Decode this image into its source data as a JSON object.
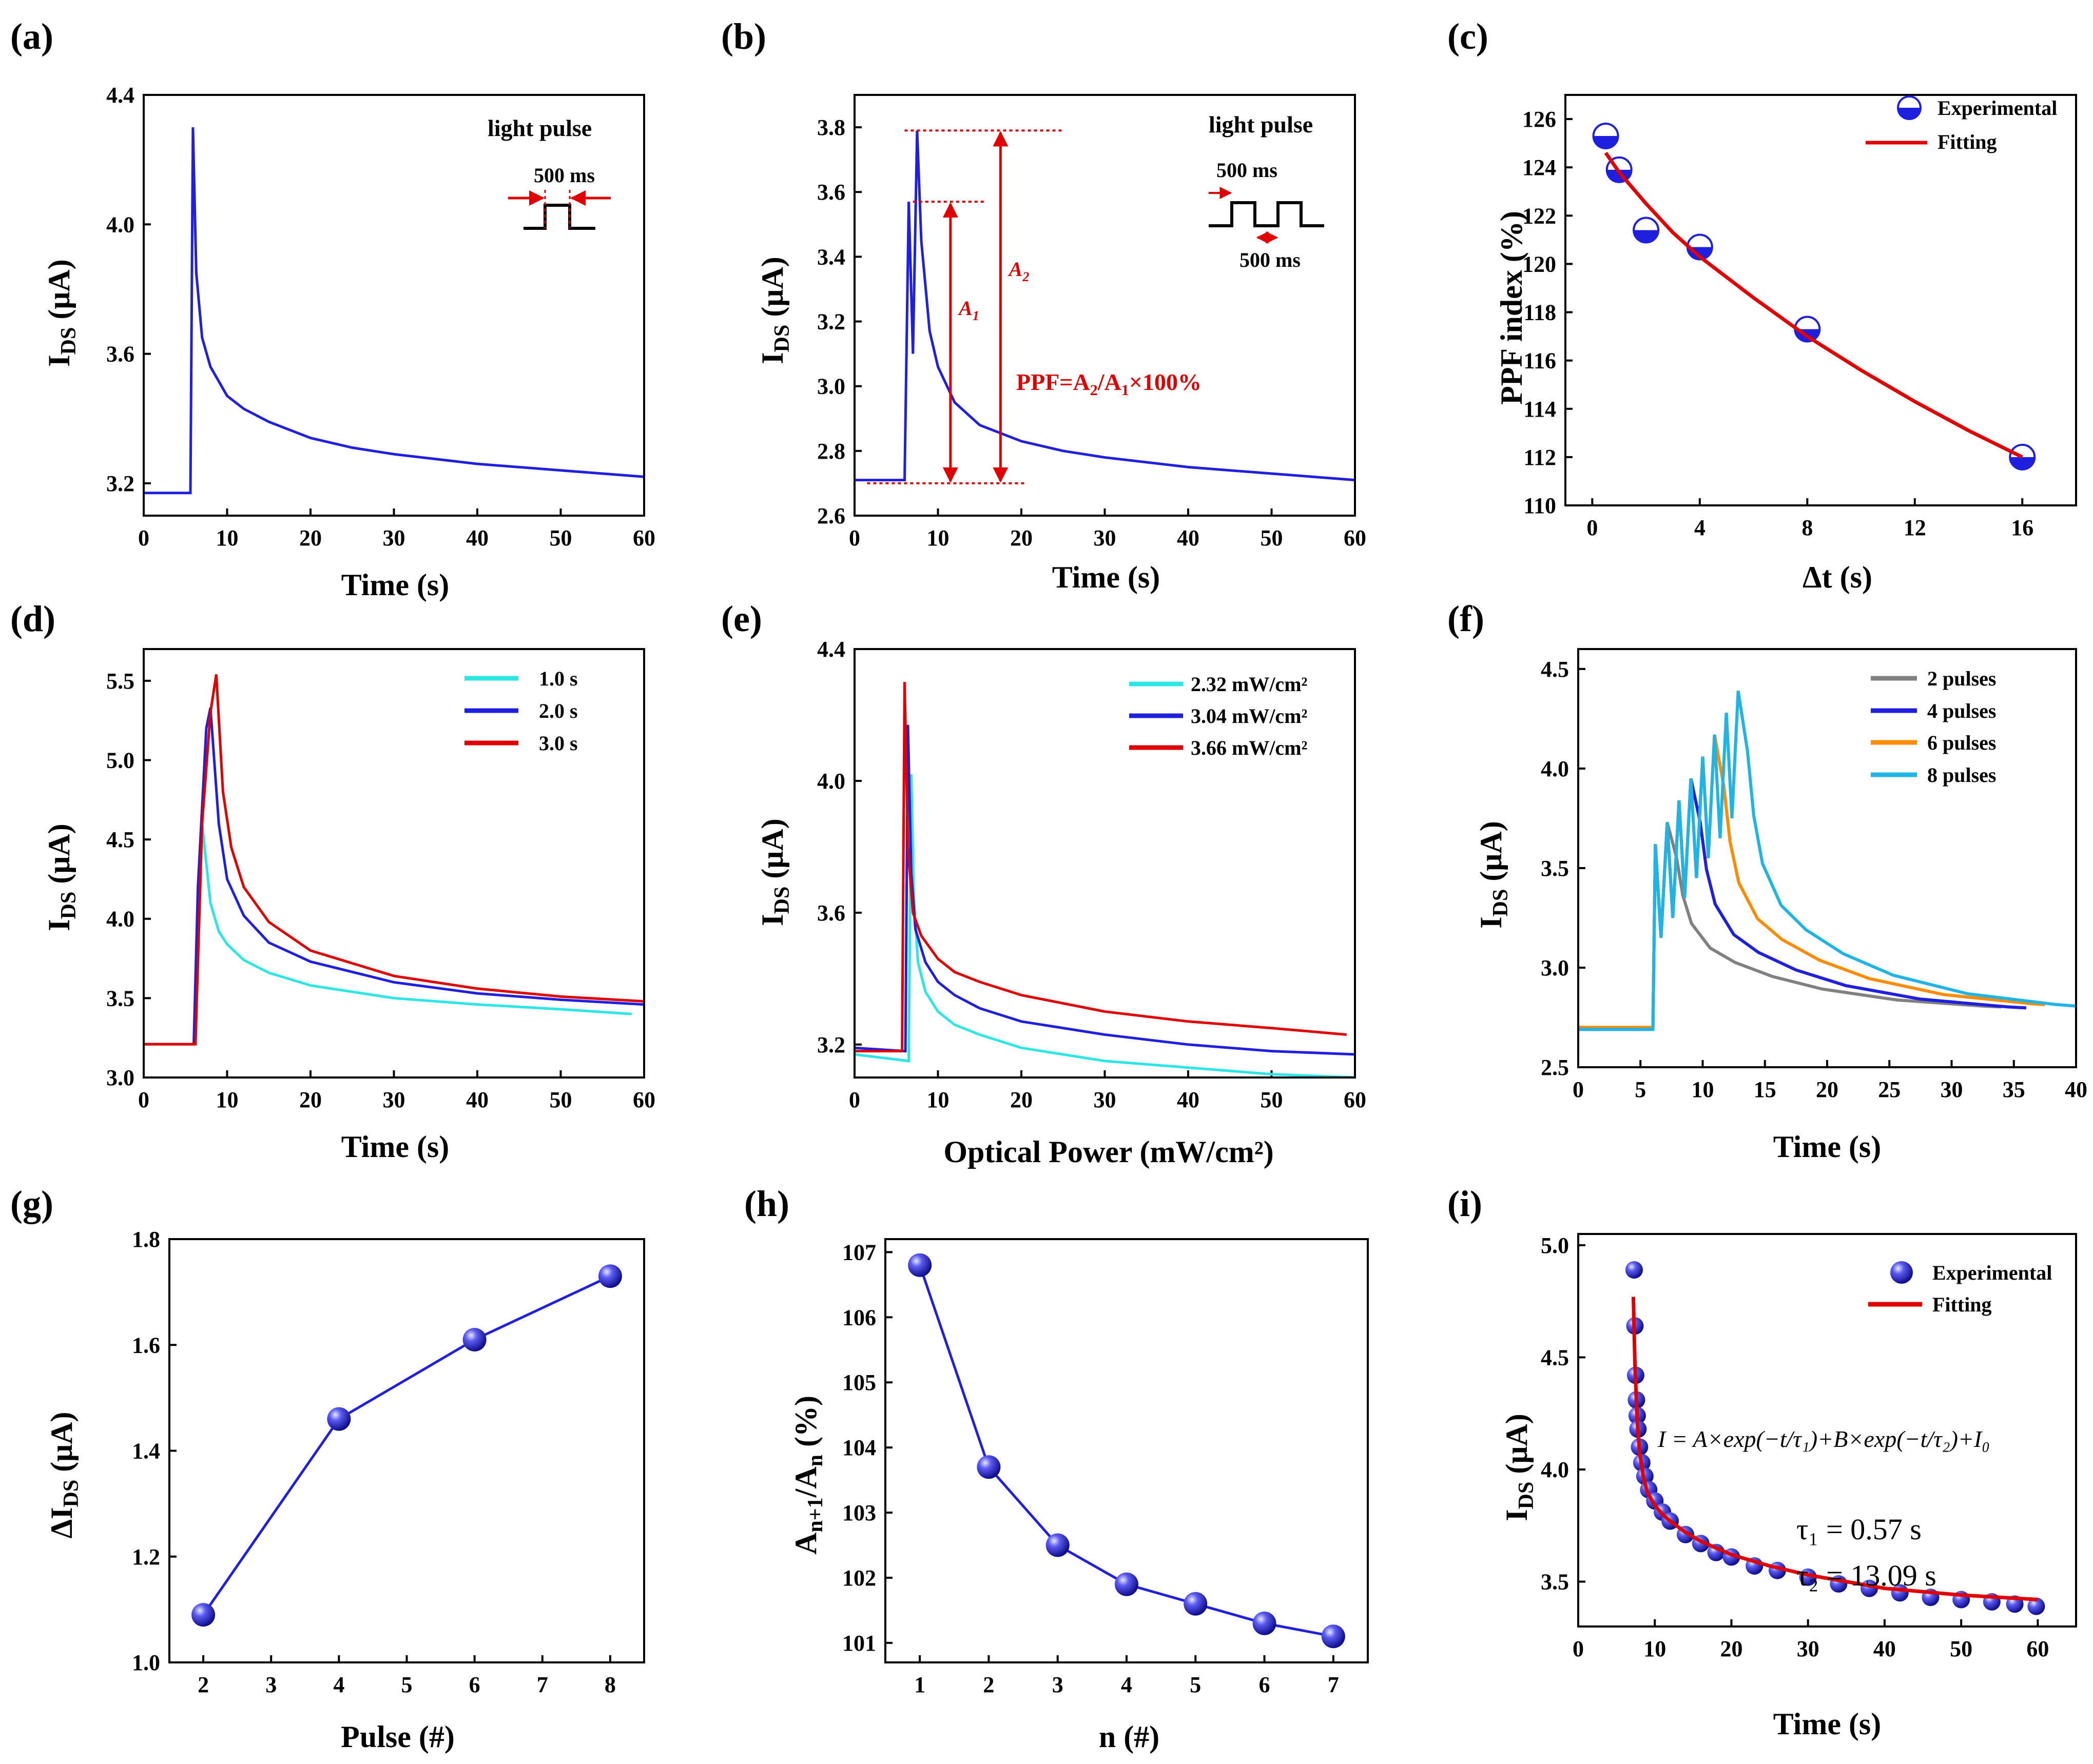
{
  "chart_data": [
    {
      "panel": "(a)",
      "type": "line",
      "xlabel": "Time (s)",
      "ylabel": "I_DS (μA)",
      "xlim": [
        0,
        60
      ],
      "ylim": [
        3.1,
        4.4
      ],
      "xticks": [
        0,
        10,
        20,
        30,
        40,
        50,
        60
      ],
      "yticks": [
        3.2,
        3.6,
        4.0,
        4.4
      ],
      "ytick_labels": [
        "3.2",
        "3.6",
        "4.0",
        "4.4"
      ],
      "series": [
        {
          "name": "I_DS",
          "color": "#1f1fe0",
          "x": [
            0,
            5.6,
            5.9,
            6.3,
            7,
            8,
            10,
            12,
            15,
            20,
            25,
            30,
            40,
            50,
            60
          ],
          "y": [
            3.17,
            3.17,
            4.3,
            3.85,
            3.65,
            3.56,
            3.47,
            3.43,
            3.39,
            3.34,
            3.31,
            3.29,
            3.26,
            3.24,
            3.22
          ]
        }
      ],
      "annotations": {
        "title": "light pulse",
        "duration": "500 ms"
      }
    },
    {
      "panel": "(b)",
      "type": "line",
      "xlabel": "Time (s)",
      "ylabel": "I_DS (μA)",
      "xlim": [
        0,
        60
      ],
      "ylim": [
        2.6,
        3.9
      ],
      "xticks": [
        0,
        10,
        20,
        30,
        40,
        50,
        60
      ],
      "yticks": [
        2.6,
        2.8,
        3.0,
        3.2,
        3.4,
        3.6,
        3.8
      ],
      "ytick_labels": [
        "2.6",
        "2.8",
        "3.0",
        "3.2",
        "3.4",
        "3.6",
        "3.8"
      ],
      "series": [
        {
          "name": "I_DS",
          "color": "#1f1fe0",
          "x": [
            0,
            6,
            6.5,
            7,
            7.5,
            8,
            9,
            10,
            12,
            15,
            20,
            25,
            30,
            40,
            50,
            60
          ],
          "y": [
            2.71,
            2.71,
            3.57,
            3.1,
            3.79,
            3.45,
            3.17,
            3.06,
            2.95,
            2.88,
            2.83,
            2.8,
            2.78,
            2.75,
            2.73,
            2.71
          ]
        }
      ],
      "annotations": {
        "title": "light pulse",
        "width": "500 ms",
        "interval": "500 ms",
        "a1": "A",
        "a1_sub": "1",
        "a2": "A",
        "a2_sub": "2",
        "formula": "PPF=A₂/A₁×100%"
      }
    },
    {
      "panel": "(c)",
      "type": "scatter",
      "xlabel": "Δt (s)",
      "ylabel": "PPF index (%)",
      "xlim": [
        -1,
        18
      ],
      "ylim": [
        110,
        127
      ],
      "xticks": [
        0,
        4,
        8,
        12,
        16
      ],
      "yticks": [
        110,
        112,
        114,
        116,
        118,
        120,
        122,
        124,
        126
      ],
      "ytick_labels": [
        "110",
        "112",
        "114",
        "116",
        "118",
        "120",
        "122",
        "124",
        "126"
      ],
      "series": [
        {
          "name": "Experimental",
          "color": "#1f1fe0",
          "x": [
            0.5,
            1,
            2,
            4,
            8,
            16
          ],
          "y": [
            125.3,
            123.9,
            121.4,
            120.7,
            117.3,
            112.0
          ]
        },
        {
          "name": "Fitting",
          "color": "#e00000",
          "x": [
            0.5,
            1,
            2,
            3,
            4,
            6,
            8,
            10,
            12,
            14,
            16
          ],
          "y": [
            124.6,
            123.8,
            122.5,
            121.3,
            120.3,
            118.6,
            117.0,
            115.6,
            114.3,
            113.1,
            112.0
          ]
        }
      ]
    },
    {
      "panel": "(d)",
      "type": "line",
      "xlabel": "Time (s)",
      "ylabel": "I_DS (μA)",
      "xlim": [
        0,
        60
      ],
      "ylim": [
        3.0,
        5.7
      ],
      "xticks": [
        0,
        10,
        20,
        30,
        40,
        50,
        60
      ],
      "yticks": [
        3.0,
        3.5,
        4.0,
        4.5,
        5.0,
        5.5
      ],
      "ytick_labels": [
        "3.0",
        "3.5",
        "4.0",
        "4.5",
        "5.0",
        "5.5"
      ],
      "series": [
        {
          "name": "1.0 s",
          "color": "#2ce6e6",
          "x": [
            0,
            6,
            7,
            8,
            9,
            10,
            12,
            15,
            20,
            30,
            40,
            50,
            58.5
          ],
          "y": [
            3.21,
            3.21,
            4.6,
            4.1,
            3.92,
            3.84,
            3.74,
            3.66,
            3.58,
            3.5,
            3.46,
            3.43,
            3.4
          ]
        },
        {
          "name": "2.0 s",
          "color": "#1f1fe0",
          "x": [
            0,
            6,
            6.5,
            7.5,
            8,
            9,
            10,
            12,
            15,
            20,
            30,
            40,
            50,
            60
          ],
          "y": [
            3.21,
            3.21,
            4.2,
            5.2,
            5.33,
            4.6,
            4.25,
            4.02,
            3.85,
            3.73,
            3.6,
            3.53,
            3.49,
            3.46
          ]
        },
        {
          "name": "3.0 s",
          "color": "#e00000",
          "x": [
            0,
            6.2,
            7,
            8,
            8.7,
            9.5,
            10.5,
            12,
            15,
            20,
            30,
            40,
            50,
            60
          ],
          "y": [
            3.21,
            3.21,
            4.6,
            5.3,
            5.54,
            4.8,
            4.45,
            4.2,
            3.98,
            3.8,
            3.64,
            3.56,
            3.51,
            3.48
          ]
        }
      ]
    },
    {
      "panel": "(e)",
      "type": "line",
      "xlabel": "Optical Power (mW/cm²)",
      "ylabel": "I_DS (μA)",
      "xlim": [
        0,
        60
      ],
      "ylim": [
        3.1,
        4.4
      ],
      "xticks": [
        0,
        10,
        20,
        30,
        40,
        50,
        60
      ],
      "yticks": [
        3.2,
        3.6,
        4.0,
        4.4
      ],
      "ytick_labels": [
        "3.2",
        "3.6",
        "4.0",
        "4.4"
      ],
      "series": [
        {
          "name": "2.32 mW/cm²",
          "color": "#2ce6e6",
          "x": [
            0,
            6.5,
            6.8,
            7.1,
            7.6,
            8.5,
            10,
            12,
            15,
            20,
            30,
            40,
            50,
            60
          ],
          "y": [
            3.17,
            3.15,
            4.02,
            3.65,
            3.45,
            3.36,
            3.3,
            3.26,
            3.23,
            3.19,
            3.15,
            3.13,
            3.11,
            3.1
          ]
        },
        {
          "name": "3.04 mW/cm²",
          "color": "#1f1fe0",
          "x": [
            0,
            6.1,
            6.4,
            6.8,
            7.3,
            8.5,
            10,
            12,
            15,
            20,
            30,
            40,
            50,
            60
          ],
          "y": [
            3.19,
            3.18,
            4.17,
            3.72,
            3.55,
            3.45,
            3.39,
            3.35,
            3.31,
            3.27,
            3.23,
            3.2,
            3.18,
            3.17
          ]
        },
        {
          "name": "3.66 mW/cm²",
          "color": "#e00000",
          "x": [
            0,
            5.7,
            6.0,
            6.4,
            7,
            8,
            10,
            12,
            15,
            20,
            30,
            40,
            50,
            59
          ],
          "y": [
            3.18,
            3.18,
            4.3,
            3.8,
            3.6,
            3.53,
            3.46,
            3.42,
            3.39,
            3.35,
            3.3,
            3.27,
            3.25,
            3.23
          ]
        }
      ]
    },
    {
      "panel": "(f)",
      "type": "line",
      "xlabel": "Time (s)",
      "ylabel": "I_DS (μA)",
      "xlim": [
        0,
        40
      ],
      "ylim": [
        2.5,
        4.6
      ],
      "xticks": [
        0,
        5,
        10,
        15,
        20,
        25,
        30,
        35,
        40
      ],
      "yticks": [
        2.5,
        3.0,
        3.5,
        4.0,
        4.5
      ],
      "ytick_labels": [
        "2.5",
        "3.0",
        "3.5",
        "4.0",
        "4.5"
      ],
      "series": [
        {
          "name": "2 pulses",
          "color": "#808080",
          "pulses": 2,
          "end": 34,
          "base": 2.7
        },
        {
          "name": "4 pulses",
          "color": "#1f1fe0",
          "pulses": 4,
          "end": 36,
          "base": 2.69
        },
        {
          "name": "6 pulses",
          "color": "#ff8c00",
          "pulses": 6,
          "end": 37.5,
          "base": 2.7
        },
        {
          "name": "8 pulses",
          "color": "#1fb4e6",
          "pulses": 8,
          "end": 40,
          "base": 2.69
        }
      ]
    },
    {
      "panel": "(g)",
      "type": "line",
      "xlabel": "Pulse (#)",
      "ylabel": "ΔI_DS (μA)",
      "xlim": [
        1.5,
        8.5
      ],
      "ylim": [
        1.0,
        1.8
      ],
      "xticks": [
        2,
        3,
        4,
        5,
        6,
        7,
        8
      ],
      "yticks": [
        1.0,
        1.2,
        1.4,
        1.6,
        1.8
      ],
      "ytick_labels": [
        "1.0",
        "1.2",
        "1.4",
        "1.6",
        "1.8"
      ],
      "series": [
        {
          "name": "ΔI_DS",
          "color": "#1f1fe0",
          "x": [
            2,
            4,
            6,
            8
          ],
          "y": [
            1.09,
            1.46,
            1.61,
            1.73
          ]
        }
      ]
    },
    {
      "panel": "(h)",
      "type": "line",
      "xlabel": "n (#)",
      "ylabel": "A_n+1/A_n (%)",
      "xlim": [
        0.5,
        7.5
      ],
      "ylim": [
        100.7,
        107.2
      ],
      "xticks": [
        1,
        2,
        3,
        4,
        5,
        6,
        7
      ],
      "yticks": [
        101,
        102,
        103,
        104,
        105,
        106,
        107
      ],
      "ytick_labels": [
        "101",
        "102",
        "103",
        "104",
        "105",
        "106",
        "107"
      ],
      "series": [
        {
          "name": "A_n+1/A_n",
          "color": "#1f1fe0",
          "x": [
            1,
            2,
            3,
            4,
            5,
            6,
            7
          ],
          "y": [
            106.8,
            103.7,
            102.5,
            101.9,
            101.6,
            101.3,
            101.1
          ]
        }
      ]
    },
    {
      "panel": "(i)",
      "type": "scatter",
      "xlabel": "Time (s)",
      "ylabel": "I_DS (μA)",
      "xlim": [
        0,
        65
      ],
      "ylim": [
        3.3,
        5.05
      ],
      "xticks": [
        0,
        10,
        20,
        30,
        40,
        50,
        60
      ],
      "yticks": [
        3.5,
        4.0,
        4.5,
        5.0
      ],
      "ytick_labels": [
        "3.5",
        "4.0",
        "4.5",
        "5.0"
      ],
      "series": [
        {
          "name": "Experimental",
          "color": "#1f1fe0",
          "x": [
            7.3,
            7.4,
            7.5,
            7.6,
            7.7,
            7.8,
            8.0,
            8.3,
            8.7,
            9.2,
            10,
            11,
            12,
            14,
            16,
            18,
            20,
            23,
            26,
            30,
            34,
            38,
            42,
            46,
            50,
            54,
            57,
            59.8
          ],
          "y": [
            4.89,
            4.64,
            4.42,
            4.31,
            4.24,
            4.18,
            4.1,
            4.03,
            3.97,
            3.91,
            3.86,
            3.81,
            3.77,
            3.71,
            3.67,
            3.63,
            3.61,
            3.57,
            3.55,
            3.52,
            3.49,
            3.47,
            3.45,
            3.43,
            3.42,
            3.41,
            3.4,
            3.39
          ]
        },
        {
          "name": "Fitting",
          "color": "#e00000",
          "x": [
            7.2,
            7.4,
            7.7,
            8.0,
            8.5,
            9,
            10,
            11,
            12,
            14,
            16,
            20,
            25,
            30,
            40,
            50,
            60
          ],
          "y": [
            4.77,
            4.48,
            4.22,
            4.08,
            3.97,
            3.9,
            3.84,
            3.8,
            3.77,
            3.72,
            3.68,
            3.62,
            3.57,
            3.53,
            3.47,
            3.44,
            3.42
          ]
        }
      ],
      "annotations": {
        "formula": "I = A×exp(−t/τ₁)+B×exp(−t/τ₂)+I₀",
        "tau1": "τ₁ = 0.57 s",
        "tau2": "τ₂ = 13.09 s"
      }
    }
  ]
}
